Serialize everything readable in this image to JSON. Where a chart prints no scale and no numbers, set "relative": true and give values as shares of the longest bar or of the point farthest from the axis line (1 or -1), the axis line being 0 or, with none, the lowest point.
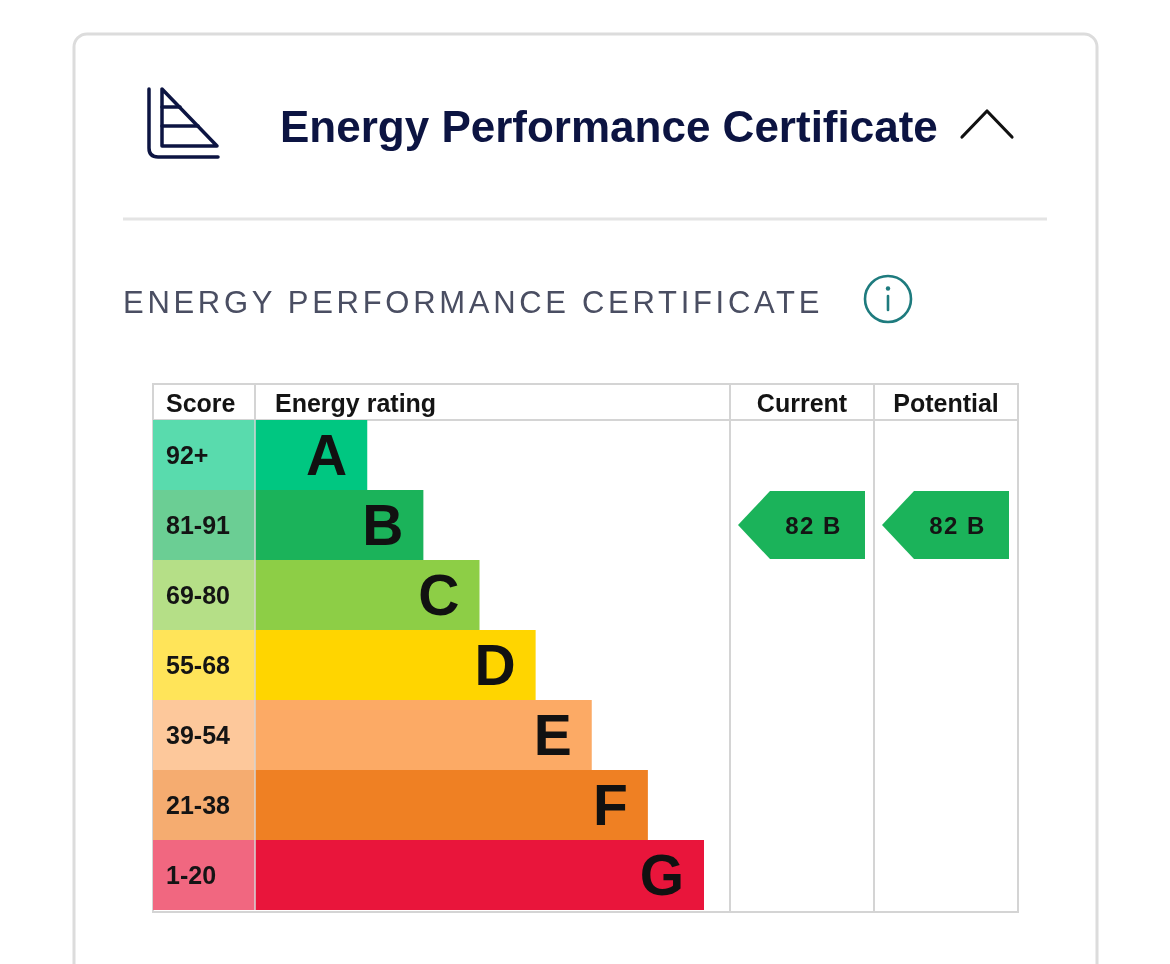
{
  "chart_data": {
    "type": "bar",
    "orientation": "horizontal",
    "relative": true,
    "title": "Energy Performance Certificate",
    "subtitle": "ENERGY PERFORMANCE CERTIFICATE",
    "ylabel": "Score",
    "xlabel": "Energy rating",
    "categories": [
      "92+",
      "81-91",
      "69-80",
      "55-68",
      "39-54",
      "21-38",
      "1-20"
    ],
    "values": [
      0.25,
      0.375,
      0.5,
      0.625,
      0.75,
      0.875,
      1
    ],
    "colors": [
      "#00c781",
      "#1bb35a",
      "#8dce46",
      "#ffd500",
      "#fcaa65",
      "#ef8023",
      "#e9153b"
    ],
    "annotations": [
      {
        "text": "A",
        "x": 0.25,
        "y": "92+"
      },
      {
        "text": "B",
        "x": 0.375,
        "y": "81-91"
      },
      {
        "text": "C",
        "x": 0.5,
        "y": "69-80"
      },
      {
        "text": "D",
        "x": 0.625,
        "y": "55-68"
      },
      {
        "text": "E",
        "x": 0.75,
        "y": "39-54"
      },
      {
        "text": "F",
        "x": 0.875,
        "y": "21-38"
      },
      {
        "text": "G",
        "x": 1,
        "y": "1-20"
      },
      "Current",
      "82 B",
      "Potential",
      "82 B"
    ]
  }
}
